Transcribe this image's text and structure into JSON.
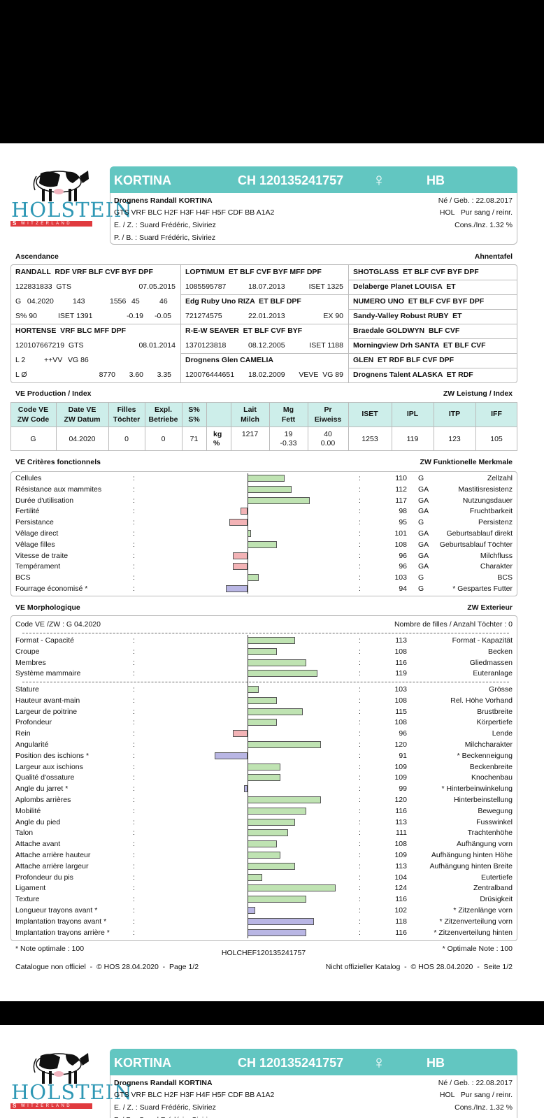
{
  "header": {
    "brand": "HOLSTEIN",
    "country_initial": "S",
    "country": "WITZERLAND",
    "name": "KORTINA",
    "id": "CH 120135241757",
    "sex": "♀",
    "herdbook": "HB",
    "full_name": "Drognens Randall KORTINA",
    "codes": "GTS VRF BLC H2F H3F H4F H5F CDF BB A1A2",
    "breeder": "E. / Z. : Suard Frédéric, Siviriez",
    "owner": "P. / B. : Suard Frédéric, Siviriez",
    "birth": "Né / Geb. : 22.08.2017",
    "breed": "HOL   Pur sang / reinr.",
    "inbreeding": "Cons./Inz. 1.32 %"
  },
  "pedigree": {
    "title_fr": "Ascendance",
    "title_de": "Ahnentafel",
    "columns": [
      [
        [
          "RANDALL  RDF VRF BLF CVF BYF DPF"
        ],
        [
          "122831833  GTS",
          "07.05.2015"
        ],
        [
          "G   04.2020",
          "143",
          "1556",
          "45",
          "46"
        ],
        [
          "S% 90",
          "ISET 1391",
          "-0.19",
          "-0.05"
        ],
        [
          "HORTENSE  VRF BLC MFF DPF"
        ],
        [
          "120107667219  GTS",
          "08.01.2014"
        ],
        [
          "L 2",
          "++VV",
          "VG 86"
        ],
        [
          "L Ø",
          "8770",
          "3.60",
          "3.35"
        ]
      ],
      [
        [
          "LOPTIMUM  ET BLF CVF BYF MFF DPF"
        ],
        [
          "1085595787",
          "18.07.2013",
          "ISET 1325"
        ],
        [
          "Edg Ruby Uno RIZA  ET BLF DPF"
        ],
        [
          "721274575",
          "22.01.2013",
          "EX 90"
        ],
        [
          "R-E-W SEAVER  ET BLF CVF BYF"
        ],
        [
          "1370123818",
          "08.12.2005",
          "ISET 1188"
        ],
        [
          "Drognens Glen CAMELIA"
        ],
        [
          "120076444651",
          "18.02.2009",
          "VEVE  VG 89"
        ]
      ],
      [
        [
          "SHOTGLASS  ET BLF CVF BYF DPF"
        ],
        [
          "Delaberge Planet LOUISA  ET"
        ],
        [
          "NUMERO UNO  ET BLF CVF BYF DPF"
        ],
        [
          "Sandy-Valley Robust RUBY  ET"
        ],
        [
          "Braedale GOLDWYN  BLF CVF"
        ],
        [
          "Morningview Drh SANTA  ET BLF CVF"
        ],
        [
          "GLEN  ET RDF BLF CVF DPF"
        ],
        [
          "Drognens Talent ALASKA  ET RDF"
        ]
      ]
    ]
  },
  "production": {
    "title_fr": "VE Production / Index",
    "title_de": "ZW Leistung / Index",
    "headers": [
      [
        "Code VE",
        "ZW Code"
      ],
      [
        "Date VE",
        "ZW Datum"
      ],
      [
        "Filles",
        "Töchter"
      ],
      [
        "Expl.",
        "Betriebe"
      ],
      [
        "S%",
        "S%"
      ],
      [],
      [
        "Lait",
        "Milch"
      ],
      [
        "Mg",
        "Fett"
      ],
      [
        "Pr",
        "Eiweiss"
      ],
      [
        "ISET"
      ],
      [
        "IPL"
      ],
      [
        "ITP"
      ],
      [
        "IFF"
      ]
    ],
    "row": [
      [
        "G"
      ],
      [
        "04.2020"
      ],
      [
        "0"
      ],
      [
        "0"
      ],
      [
        "71"
      ],
      [
        "kg",
        "%"
      ],
      [
        "1217"
      ],
      [
        "19",
        "-0.33"
      ],
      [
        "40",
        "0.00"
      ],
      [
        "1253"
      ],
      [
        "119"
      ],
      [
        "123"
      ],
      [
        "105"
      ]
    ]
  },
  "separator": ":",
  "functional": {
    "title_fr": "VE Critères fonctionnels",
    "title_de": "ZW Funktionelle Merkmale",
    "xlim": [
      70,
      130
    ],
    "rows": [
      {
        "fr": "Cellules",
        "value": 110,
        "code": "G",
        "de": "Zellzahl",
        "color": "#bfe3b2"
      },
      {
        "fr": "Résistance aux mammites",
        "value": 112,
        "code": "GA",
        "de": "Mastitisresistenz",
        "color": "#bfe3b2"
      },
      {
        "fr": "Durée d'utilisation",
        "value": 117,
        "code": "GA",
        "de": "Nutzungsdauer",
        "color": "#bfe3b2"
      },
      {
        "fr": "Fertilité",
        "value": 98,
        "code": "GA",
        "de": "Fruchtbarkeit",
        "color": "#f3b3b6"
      },
      {
        "fr": "Persistance",
        "value": 95,
        "code": "G",
        "de": "Persistenz",
        "color": "#f3b3b6"
      },
      {
        "fr": "Vêlage direct",
        "value": 101,
        "code": "GA",
        "de": "Geburtsablauf direkt",
        "color": "#bfe3b2"
      },
      {
        "fr": "Vêlage filles",
        "value": 108,
        "code": "GA",
        "de": "Geburtsablauf Töchter",
        "color": "#bfe3b2"
      },
      {
        "fr": "Vitesse de traite",
        "value": 96,
        "code": "GA",
        "de": "Milchfluss",
        "color": "#f3b3b6"
      },
      {
        "fr": "Tempérament",
        "value": 96,
        "code": "GA",
        "de": "Charakter",
        "color": "#f3b3b6"
      },
      {
        "fr": "BCS",
        "value": 103,
        "code": "G",
        "de": "BCS",
        "color": "#bfe3b2"
      },
      {
        "fr": "Fourrage économisé *",
        "value": 94,
        "code": "G",
        "de": "* Gespartes Futter",
        "color": "#b9b6e4"
      }
    ]
  },
  "morphology": {
    "title_fr": "VE Morphologique",
    "title_de": "ZW Exterieur",
    "code": "Code VE /ZW : G 04.2020",
    "daughters": "Nombre de filles / Anzahl Töchter : 0",
    "xlim": [
      70,
      130
    ],
    "groups": [
      [
        {
          "fr": "Format - Capacité",
          "value": 113,
          "de": "Format - Kapazität",
          "color": "#bfe3b2"
        },
        {
          "fr": "Croupe",
          "value": 108,
          "de": "Becken",
          "color": "#bfe3b2"
        },
        {
          "fr": "Membres",
          "value": 116,
          "de": "Gliedmassen",
          "color": "#bfe3b2"
        },
        {
          "fr": "Système mammaire",
          "value": 119,
          "de": "Euteranlage",
          "color": "#bfe3b2"
        }
      ],
      [
        {
          "fr": "Stature",
          "value": 103,
          "de": "Grösse",
          "color": "#bfe3b2"
        },
        {
          "fr": "Hauteur avant-main",
          "value": 108,
          "de": "Rel. Höhe Vorhand",
          "color": "#bfe3b2"
        },
        {
          "fr": "Largeur de poitrine",
          "value": 115,
          "de": "Brustbreite",
          "color": "#bfe3b2"
        },
        {
          "fr": "Profondeur",
          "value": 108,
          "de": "Körpertiefe",
          "color": "#bfe3b2"
        },
        {
          "fr": "Rein",
          "value": 96,
          "de": "Lende",
          "color": "#f3b3b6"
        },
        {
          "fr": "Angularité",
          "value": 120,
          "de": "Milchcharakter",
          "color": "#bfe3b2"
        },
        {
          "fr": "Position des ischions *",
          "value": 91,
          "de": "* Beckenneigung",
          "color": "#b9b6e4"
        },
        {
          "fr": "Largeur aux ischions",
          "value": 109,
          "de": "Beckenbreite",
          "color": "#bfe3b2"
        },
        {
          "fr": "Qualité d'ossature",
          "value": 109,
          "de": "Knochenbau",
          "color": "#bfe3b2"
        },
        {
          "fr": "Angle du jarret *",
          "value": 99,
          "de": "* Hinterbeinwinkelung",
          "color": "#b9b6e4"
        },
        {
          "fr": "Aplombs arrières",
          "value": 120,
          "de": "Hinterbeinstellung",
          "color": "#bfe3b2"
        },
        {
          "fr": "Mobilité",
          "value": 116,
          "de": "Bewegung",
          "color": "#bfe3b2"
        },
        {
          "fr": "Angle du pied",
          "value": 113,
          "de": "Fusswinkel",
          "color": "#bfe3b2"
        },
        {
          "fr": "Talon",
          "value": 111,
          "de": "Trachtenhöhe",
          "color": "#bfe3b2"
        },
        {
          "fr": "Attache avant",
          "value": 108,
          "de": "Aufhängung vorn",
          "color": "#bfe3b2"
        },
        {
          "fr": "Attache arrière hauteur",
          "value": 109,
          "de": "Aufhängung hinten Höhe",
          "color": "#bfe3b2"
        },
        {
          "fr": "Attache arrière largeur",
          "value": 113,
          "de": "Aufhängung hinten Breite",
          "color": "#bfe3b2"
        },
        {
          "fr": "Profondeur du pis",
          "value": 104,
          "de": "Eutertiefe",
          "color": "#bfe3b2"
        },
        {
          "fr": "Ligament",
          "value": 124,
          "de": "Zentralband",
          "color": "#bfe3b2"
        },
        {
          "fr": "Texture",
          "value": 116,
          "de": "Drüsigkeit",
          "color": "#bfe3b2"
        },
        {
          "fr": "Longueur trayons avant *",
          "value": 102,
          "de": "* Zitzenlänge vorn",
          "color": "#b9b6e4"
        },
        {
          "fr": "Implantation trayons avant *",
          "value": 118,
          "de": "* Zitzenverteilung vorn",
          "color": "#b9b6e4"
        },
        {
          "fr": "Implantation trayons arrière *",
          "value": 116,
          "de": "* Zitzenverteilung hinten",
          "color": "#b9b6e4"
        }
      ]
    ]
  },
  "footer": {
    "note_fr": "* Note optimale : 100",
    "code": "HOLCHEF120135241757",
    "note_de": "* Optimale Note : 100",
    "catalogue_fr": "Catalogue non officiel  -  © HOS 28.04.2020  -  Page 1/2",
    "catalogue_de": "Nicht offizieller Katalog  -  © HOS 28.04.2020  -  Seite 1/2"
  }
}
